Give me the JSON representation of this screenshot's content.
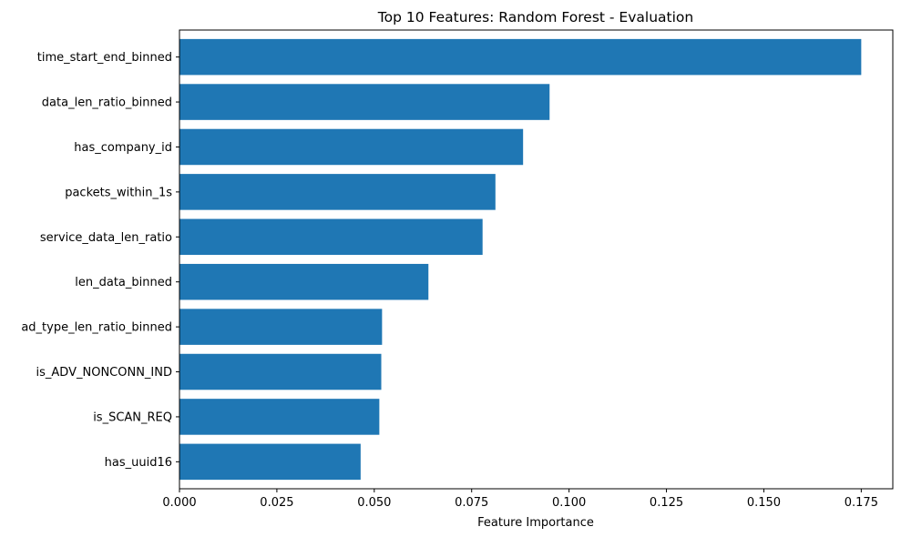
{
  "chart_data": {
    "type": "bar",
    "orientation": "horizontal",
    "title": "Top 10 Features: Random Forest - Evaluation",
    "xlabel": "Feature Importance",
    "ylabel": "",
    "categories": [
      "time_start_end_binned",
      "data_len_ratio_binned",
      "has_company_id",
      "packets_within_1s",
      "service_data_len_ratio",
      "len_data_binned",
      "ad_type_len_ratio_binned",
      "is_ADV_NONCONN_IND",
      "is_SCAN_REQ",
      "has_uuid16"
    ],
    "values": [
      0.175,
      0.095,
      0.0882,
      0.0811,
      0.0778,
      0.0639,
      0.052,
      0.0518,
      0.0513,
      0.0465
    ],
    "xlim": [
      0,
      0.1831
    ],
    "xticks": [
      0.0,
      0.025,
      0.05,
      0.075,
      0.1,
      0.125,
      0.15,
      0.175
    ],
    "xtick_labels": [
      "0.000",
      "0.025",
      "0.050",
      "0.075",
      "0.100",
      "0.125",
      "0.150",
      "0.175"
    ],
    "grid": false,
    "legend": "none",
    "bar_color": "#1f77b4"
  }
}
